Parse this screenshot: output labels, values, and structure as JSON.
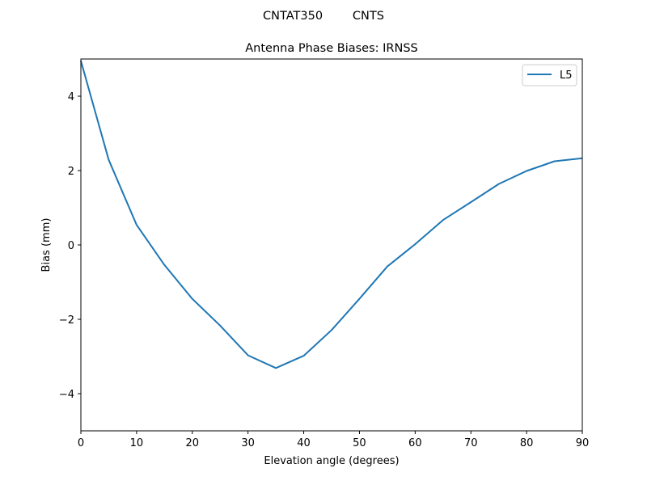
{
  "figure": {
    "suptitle": "CNTAT350        CNTS",
    "title": "Antenna Phase Biases: IRNSS",
    "xlabel": "Elevation angle (degrees)",
    "ylabel": "Bias (mm)",
    "line_color": "#1f77b4"
  },
  "chart_data": {
    "type": "line",
    "title": "Antenna Phase Biases: IRNSS",
    "suptitle": "CNTAT350        CNTS",
    "xlabel": "Elevation angle (degrees)",
    "ylabel": "Bias (mm)",
    "xlim": [
      0,
      90
    ],
    "ylim": [
      -5,
      5
    ],
    "xticks": [
      0,
      10,
      20,
      30,
      40,
      50,
      60,
      70,
      80,
      90
    ],
    "yticks": [
      -4,
      -2,
      0,
      2,
      4
    ],
    "ytick_labels": [
      "−4",
      "−2",
      "0",
      "2",
      "4"
    ],
    "grid": false,
    "legend": {
      "position": "upper right",
      "entries": [
        "L5"
      ]
    },
    "x": [
      0,
      5,
      10,
      15,
      20,
      25,
      30,
      35,
      40,
      45,
      50,
      55,
      60,
      65,
      70,
      75,
      80,
      85,
      90
    ],
    "series": [
      {
        "name": "L5",
        "color": "#1f77b4",
        "values": [
          4.95,
          2.29,
          0.54,
          -0.54,
          -1.45,
          -2.17,
          -2.97,
          -3.31,
          -2.98,
          -2.29,
          -1.45,
          -0.58,
          0.02,
          0.67,
          1.15,
          1.64,
          1.99,
          2.25,
          2.33
        ]
      }
    ]
  }
}
